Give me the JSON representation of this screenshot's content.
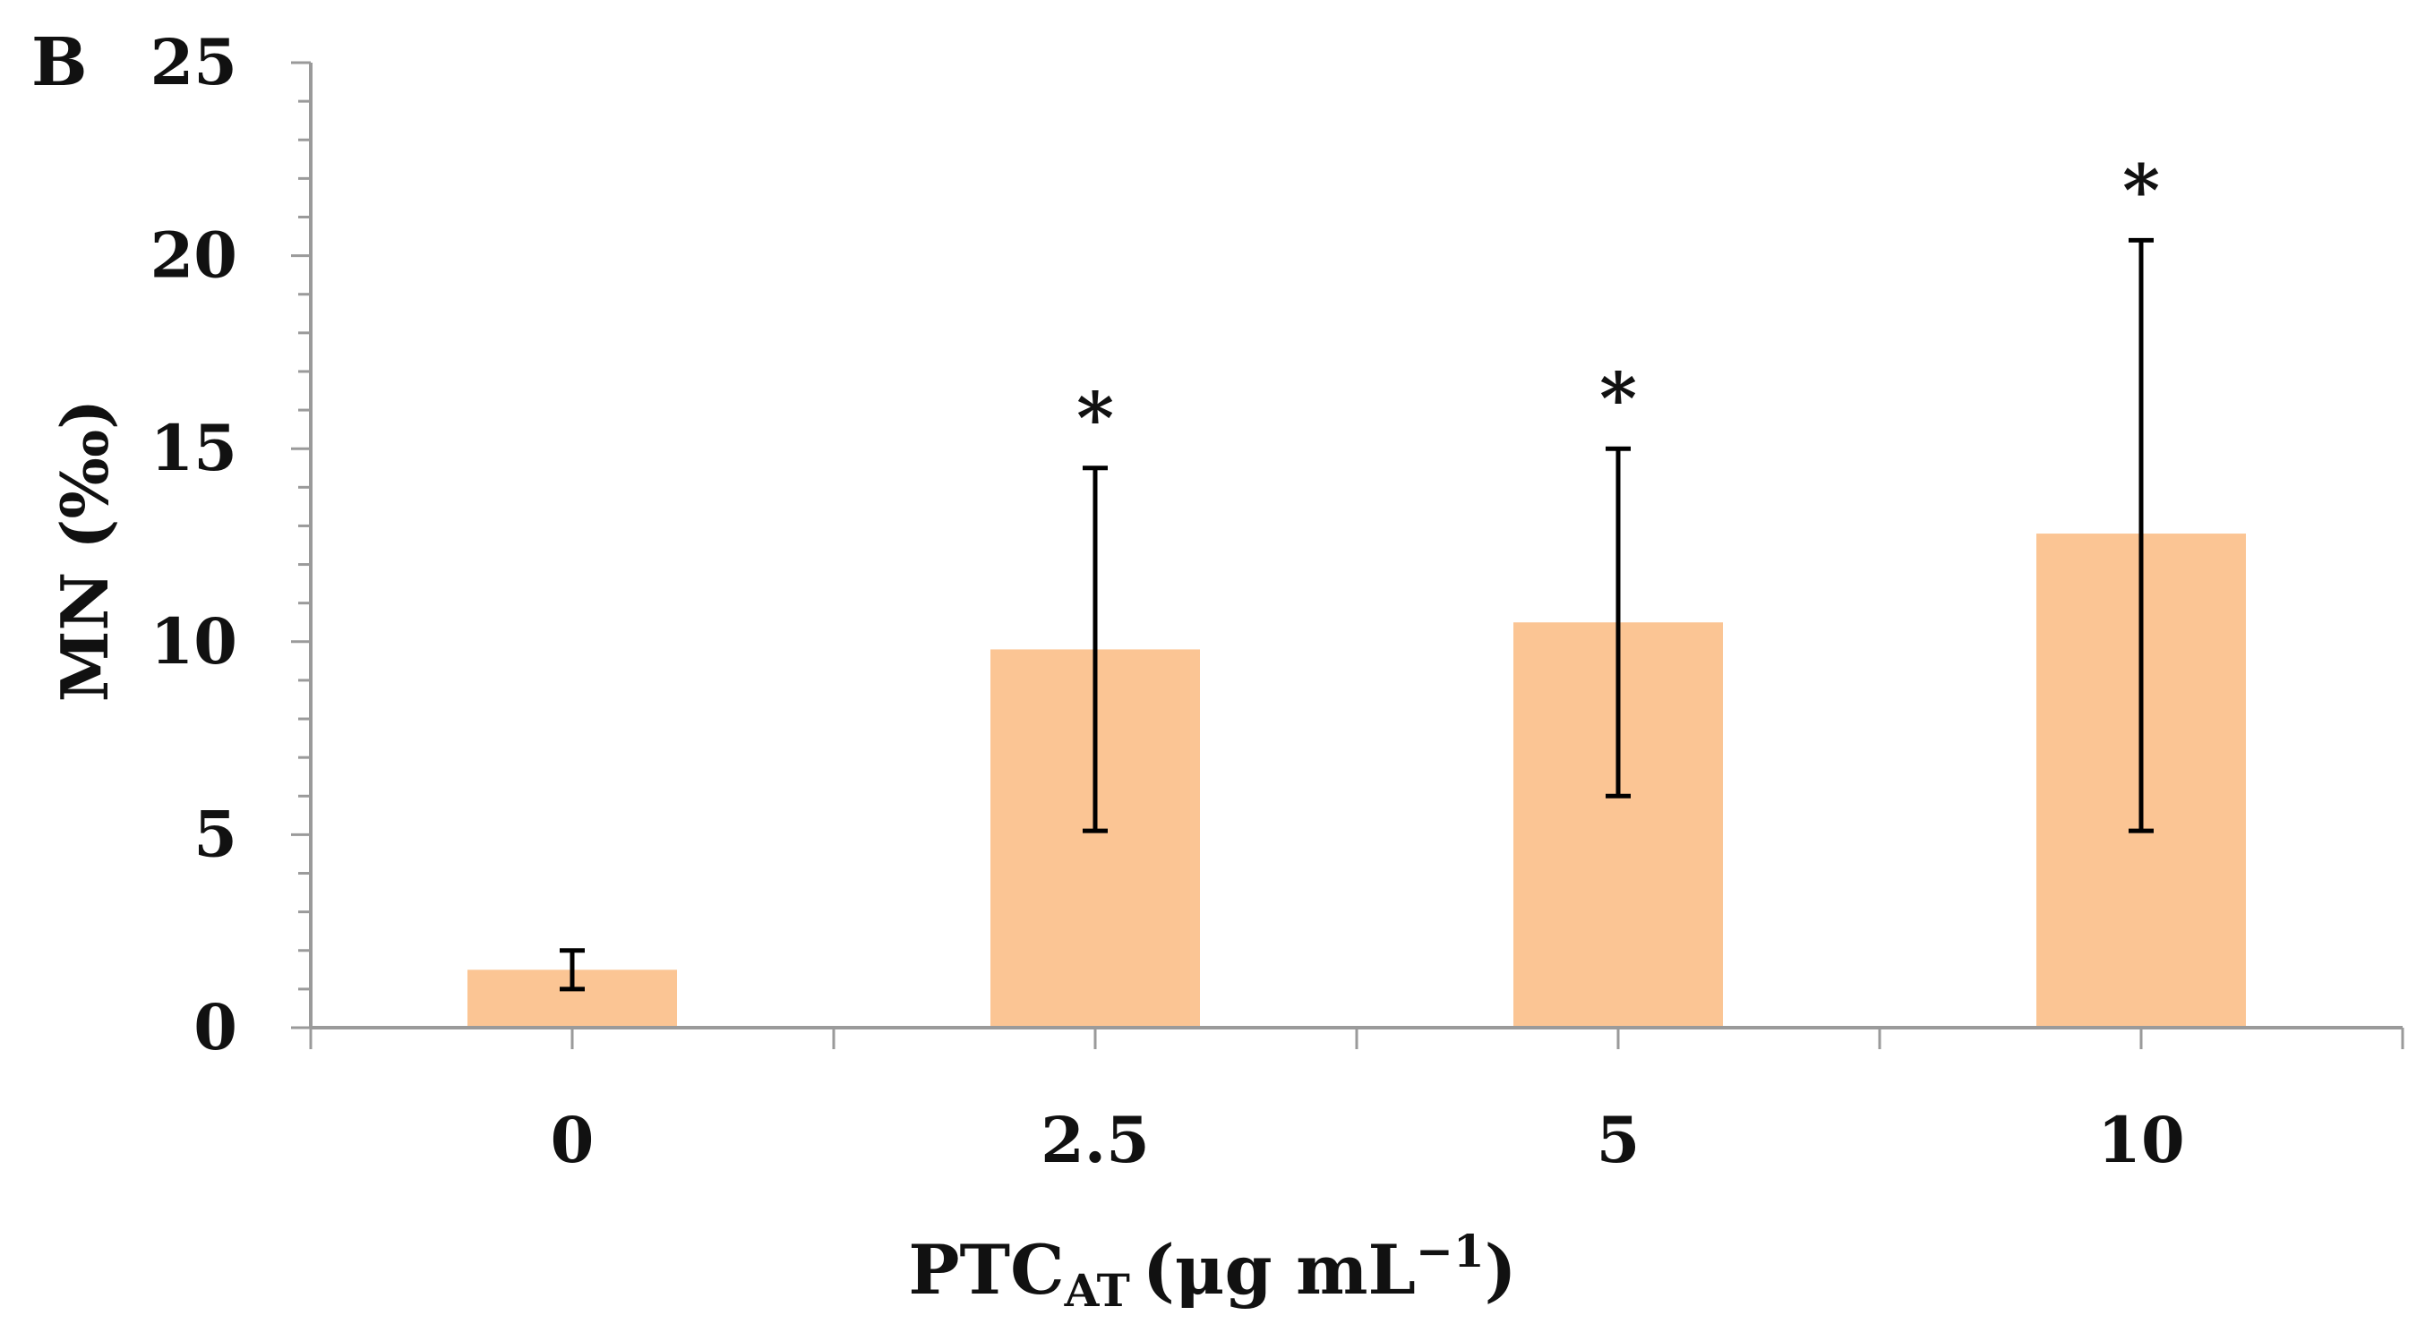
{
  "panel_label": "B",
  "chart_data": {
    "type": "bar",
    "categories": [
      "0",
      "2.5",
      "5",
      "10"
    ],
    "values": [
      1.5,
      9.8,
      10.5,
      12.8
    ],
    "errors_upper": [
      2.0,
      14.5,
      15.0,
      20.4
    ],
    "errors_lower": [
      1.0,
      5.1,
      6.0,
      5.1
    ],
    "significance": [
      "",
      "*",
      "*",
      "*"
    ],
    "bar_color": "#FBC594",
    "axis_color": "#9a9a9a",
    "ylim": [
      0,
      25
    ],
    "yticks": [
      "0",
      "5",
      "10",
      "15",
      "20",
      "25"
    ],
    "ylabel": "MN (‰)",
    "xlabel": {
      "main": "PTC",
      "subscript": "AT",
      "units_prefix": "(μg mL",
      "units_superscript": "−1",
      "units_suffix": ")"
    },
    "grid": false,
    "legend": "none"
  }
}
